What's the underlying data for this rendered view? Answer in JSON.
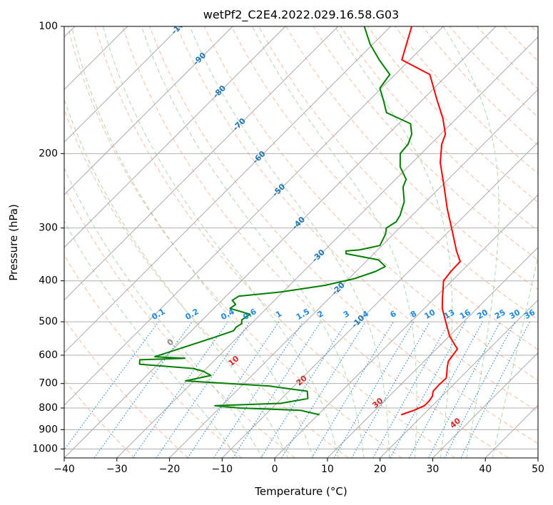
{
  "chart_data": {
    "type": "skew-t",
    "title": "wetPf2_C2E4.2022.029.16.58.G03",
    "xlabel": "Temperature (°C)",
    "ylabel": "Pressure (hPa)",
    "xlim": [
      -40,
      50
    ],
    "ylim": [
      1050,
      100
    ],
    "y_scale": "log",
    "grid": true,
    "x_ticks": [
      "−40",
      "−30",
      "−20",
      "−10",
      "0",
      "10",
      "20",
      "30",
      "40",
      "50"
    ],
    "y_ticks": [
      "100",
      "200",
      "300",
      "400",
      "500",
      "600",
      "700",
      "800",
      "900",
      "1000"
    ],
    "series": [
      {
        "color": "#ff0000",
        "points": [
          [
            15.8,
            830
          ],
          [
            17.4,
            810
          ],
          [
            18.5,
            790
          ],
          [
            18.5,
            770
          ],
          [
            18.2,
            750
          ],
          [
            17.4,
            730
          ],
          [
            17.3,
            705
          ],
          [
            17.4,
            680
          ],
          [
            16.5,
            660
          ],
          [
            15.5,
            640
          ],
          [
            14.6,
            620
          ],
          [
            14.3,
            600
          ],
          [
            14.0,
            580
          ],
          [
            12.5,
            565
          ],
          [
            10.0,
            540
          ],
          [
            6.6,
            500
          ],
          [
            3.4,
            465
          ],
          [
            1.5,
            440
          ],
          [
            0,
            420
          ],
          [
            -1.6,
            400
          ],
          [
            -2.0,
            380
          ],
          [
            -2.1,
            360
          ],
          [
            -4.8,
            340
          ],
          [
            -10.1,
            300
          ],
          [
            -14.6,
            270
          ],
          [
            -19.3,
            240
          ],
          [
            -24.7,
            210
          ],
          [
            -27.9,
            190
          ],
          [
            -29.1,
            180
          ],
          [
            -32.6,
            165
          ],
          [
            -37.0,
            150
          ],
          [
            -43.4,
            130
          ],
          [
            -51.5,
            120
          ],
          [
            -56.0,
            100
          ]
        ]
      },
      {
        "color": "#008000",
        "points": [
          [
            0.3,
            830
          ],
          [
            -4.2,
            810
          ],
          [
            -16.3,
            800
          ],
          [
            -21.3,
            790
          ],
          [
            -9.3,
            780
          ],
          [
            -5.0,
            760
          ],
          [
            -6.5,
            730
          ],
          [
            -14.6,
            710
          ],
          [
            -31.6,
            690
          ],
          [
            -27.8,
            670
          ],
          [
            -30.0,
            655
          ],
          [
            -32.5,
            645
          ],
          [
            -43.5,
            630
          ],
          [
            -44.3,
            615
          ],
          [
            -36.0,
            610
          ],
          [
            -42.0,
            605
          ],
          [
            -34.5,
            545
          ],
          [
            -32.0,
            525
          ],
          [
            -32.2,
            515
          ],
          [
            -31.8,
            505
          ],
          [
            -32.5,
            495
          ],
          [
            -32.0,
            480
          ],
          [
            -36.9,
            465
          ],
          [
            -36.6,
            455
          ],
          [
            -38.0,
            445
          ],
          [
            -37.6,
            435
          ],
          [
            -30.3,
            425
          ],
          [
            -23.2,
            410
          ],
          [
            -18.9,
            395
          ],
          [
            -16.3,
            380
          ],
          [
            -15.4,
            370
          ],
          [
            -17.9,
            357
          ],
          [
            -25.3,
            345
          ],
          [
            -25.8,
            340
          ],
          [
            -23.5,
            338
          ],
          [
            -20.4,
            330
          ],
          [
            -21.5,
            310
          ],
          [
            -22.5,
            300
          ],
          [
            -21.8,
            290
          ],
          [
            -22.3,
            280
          ],
          [
            -24.1,
            260
          ],
          [
            -27.1,
            240
          ],
          [
            -28.0,
            230
          ],
          [
            -31.5,
            215
          ],
          [
            -34.0,
            200
          ],
          [
            -34.3,
            190
          ],
          [
            -35.5,
            180
          ],
          [
            -37.7,
            170
          ],
          [
            -44.4,
            160
          ],
          [
            -47.2,
            150
          ],
          [
            -50.3,
            140
          ],
          [
            -51.0,
            130
          ],
          [
            -55.8,
            120
          ],
          [
            -60.6,
            110
          ],
          [
            -65.0,
            100
          ]
        ]
      }
    ],
    "dry_adiabat_labels": [
      "0",
      "10",
      "20",
      "30",
      "40"
    ],
    "isotherm_labels": [
      "-100",
      "-90",
      "-80",
      "-70",
      "-60",
      "-50",
      "-40",
      "-30",
      "-20",
      "-10"
    ],
    "mixing_ratio_labels": [
      "0.1",
      "0.2",
      "0.4",
      "0.6",
      "1",
      "1.5",
      "2",
      "3",
      "4",
      "6",
      "8",
      "10",
      "13",
      "16",
      "20",
      "25",
      "30",
      "36"
    ]
  },
  "colors": {
    "temperature": "#ff0000",
    "dewpoint": "#008000",
    "isotherm_lines": "#aaaaaa",
    "isotherm_labels": "#1f77b4",
    "dry_adiabats": "#f4a582",
    "moist_adiabats": "#9dd19d",
    "mixing_ratio_lines": "#1e88e5",
    "dry_adiabat_labels": "#d62728",
    "zero_label": "#888888"
  }
}
